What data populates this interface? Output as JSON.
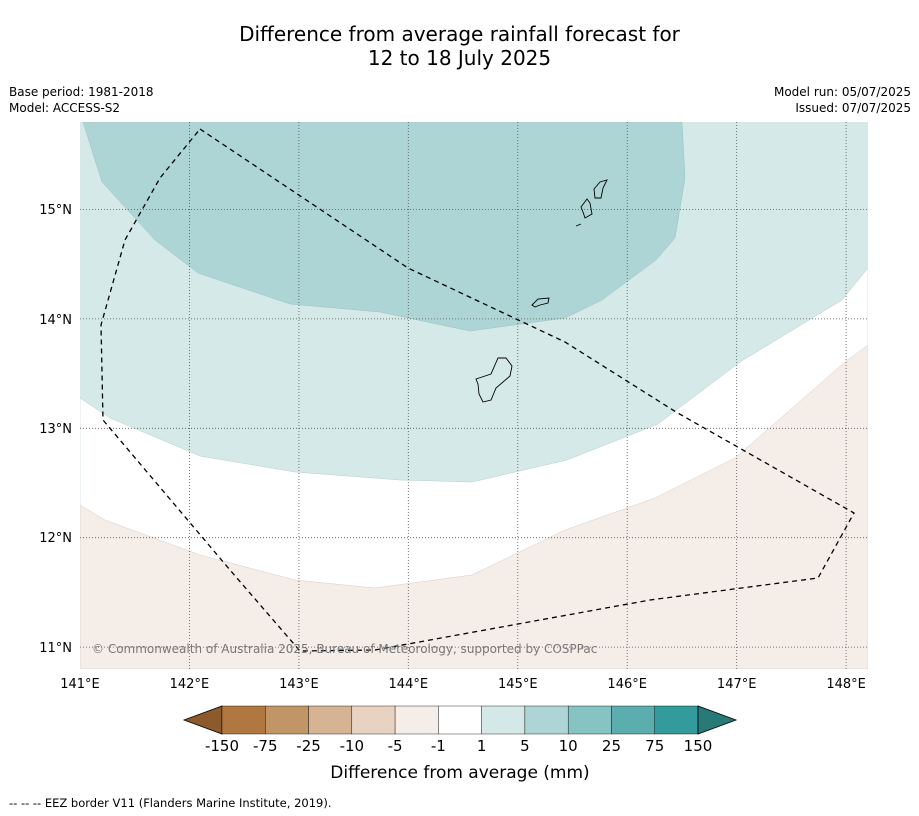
{
  "title": {
    "line1": "Difference from average rainfall forecast for",
    "line2": "12 to 18 July 2025"
  },
  "meta_left": {
    "base_period": "Base period: 1981-2018",
    "model": "Model: ACCESS-S2"
  },
  "meta_right": {
    "model_run": "Model run: 05/07/2025",
    "issued": "Issued: 07/07/2025"
  },
  "map": {
    "extent": {
      "lon": [
        141.0,
        148.2
      ],
      "lat": [
        10.8,
        15.8
      ]
    },
    "lon_ticks": [
      {
        "value": 141,
        "label": "141°E"
      },
      {
        "value": 142,
        "label": "142°E"
      },
      {
        "value": 143,
        "label": "143°E"
      },
      {
        "value": 144,
        "label": "144°E"
      },
      {
        "value": 145,
        "label": "145°E"
      },
      {
        "value": 146,
        "label": "146°E"
      },
      {
        "value": 147,
        "label": "147°E"
      },
      {
        "value": 148,
        "label": "148°E"
      }
    ],
    "lat_ticks": [
      {
        "value": 11,
        "label": "11°N"
      },
      {
        "value": 12,
        "label": "12°N"
      },
      {
        "value": 13,
        "label": "13°N"
      },
      {
        "value": 14,
        "label": "14°N"
      },
      {
        "value": 15,
        "label": "15°N"
      }
    ],
    "copyright": "© Commonwealth of Australia 2025, Bureau of Meteorology, supported by COSPPac"
  },
  "legend": {
    "boundaries": [
      "-150",
      "-75",
      "-25",
      "-10",
      "-5",
      "-1",
      "1",
      "5",
      "10",
      "25",
      "75",
      "150"
    ],
    "colors": [
      "#8c5a2b",
      "#b07840",
      "#c29566",
      "#d6b392",
      "#e8d3c2",
      "#f5ede8",
      "#ffffff",
      "#d4e8e7",
      "#aed5d5",
      "#86c3c3",
      "#5caeae",
      "#339b9b",
      "#277a78"
    ],
    "label": "Difference from average (mm)"
  },
  "footer": "--  --  -- EEZ border V11 (Flanders Marine Institute, 2019)."
}
